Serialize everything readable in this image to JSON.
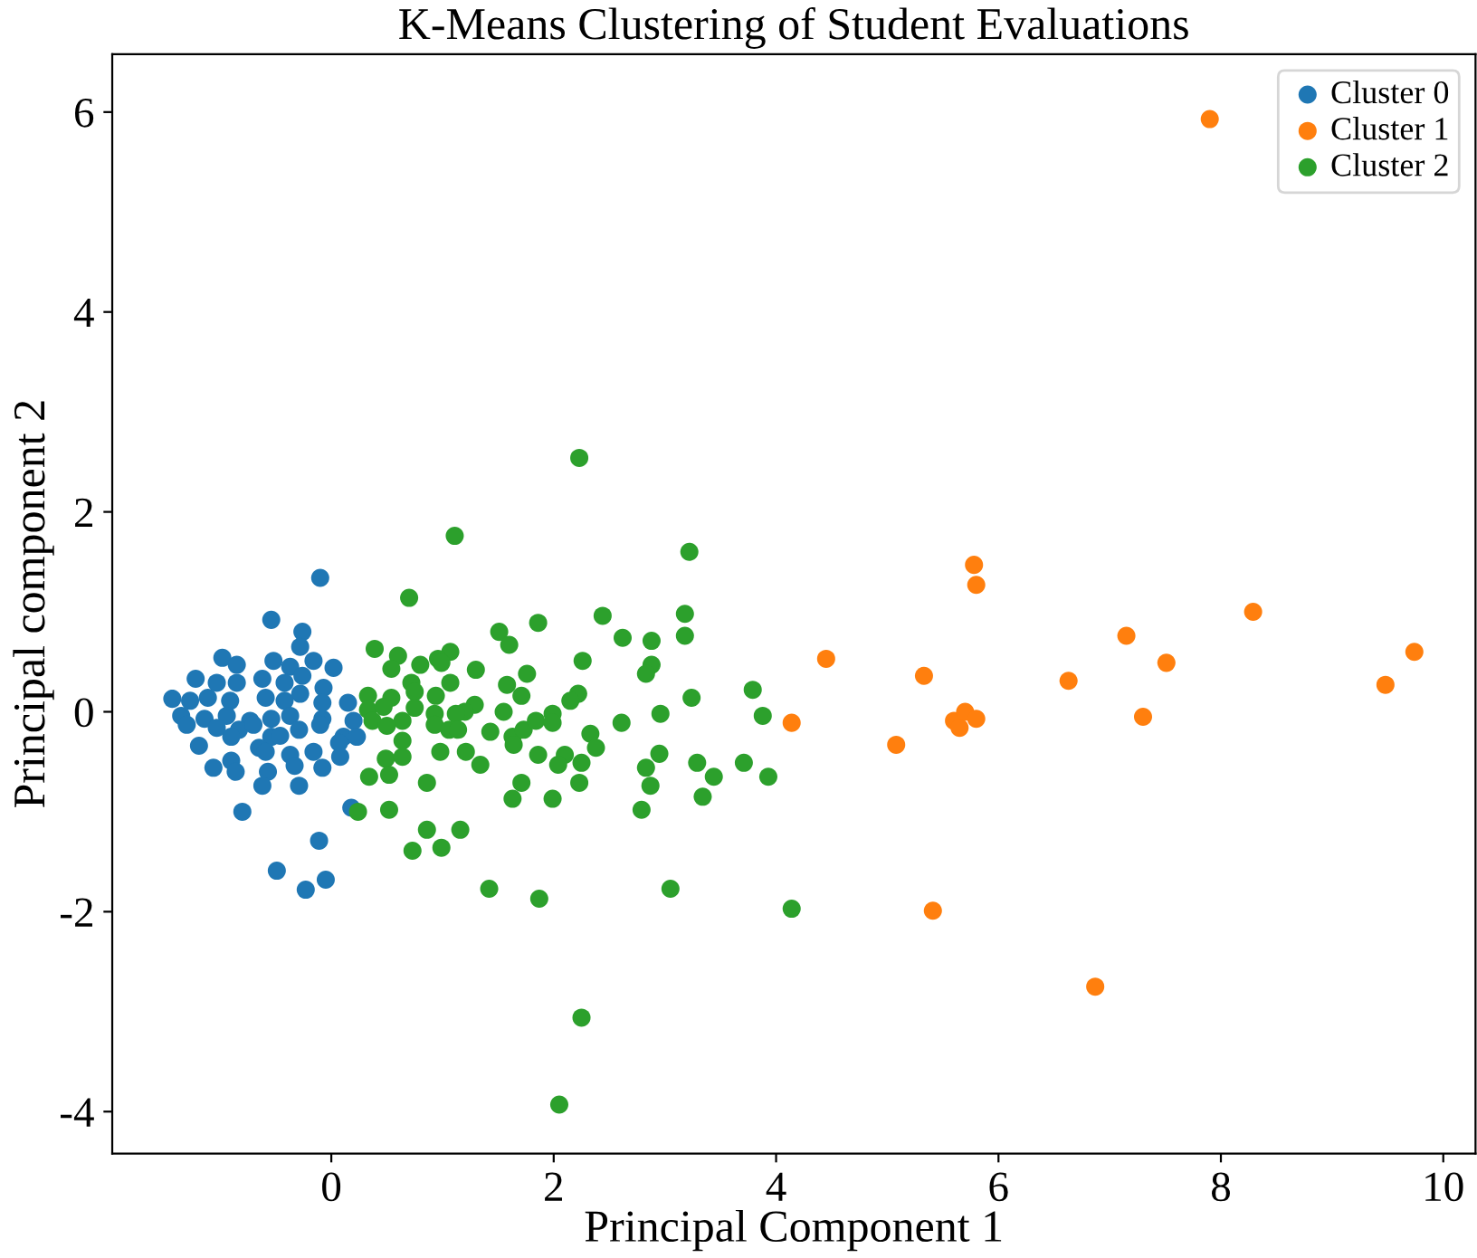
{
  "chart_data": {
    "type": "scatter",
    "title": "K-Means Clustering of Student Evaluations",
    "xlabel": "Principal Component 1",
    "ylabel": "Principal component 2",
    "xlim": [
      -1.97,
      10.29
    ],
    "ylim": [
      -4.42,
      6.58
    ],
    "xticks": [
      0,
      2,
      4,
      6,
      8,
      10
    ],
    "yticks": [
      {
        "value": -4,
        "label": "-4"
      },
      {
        "value": -2,
        "label": "-2"
      },
      0,
      2,
      4,
      6
    ],
    "grid": false,
    "legend": "top right",
    "marker": "circle",
    "series": [
      {
        "name": "Cluster 0",
        "color": "#1f77b4",
        "x": [
          -0.1,
          -0.54,
          -0.26,
          -0.28,
          -0.98,
          -0.85,
          -0.52,
          -0.37,
          -0.16,
          0.02,
          -1.22,
          -1.03,
          -0.85,
          -0.62,
          -0.42,
          -0.26,
          -0.07,
          -0.28,
          -1.43,
          -1.27,
          -1.11,
          -0.91,
          -0.59,
          -0.42,
          -0.08,
          0.15,
          -1.35,
          -1.14,
          -0.94,
          -0.73,
          -0.54,
          -0.37,
          -0.08,
          0.2,
          -1.3,
          -1.03,
          -0.83,
          -0.7,
          -0.29,
          -0.1,
          0.11,
          0.23,
          -1.19,
          -0.9,
          -0.54,
          -0.46,
          -0.65,
          -0.37,
          -0.16,
          0.07,
          -0.59,
          -1.06,
          -0.9,
          -0.86,
          -0.57,
          -0.33,
          -0.08,
          0.08,
          -0.62,
          -0.29,
          -0.8,
          0.18,
          -0.11,
          -0.49,
          -0.23,
          -0.05
        ],
        "values": [
          1.34,
          0.92,
          0.8,
          0.65,
          0.54,
          0.47,
          0.51,
          0.45,
          0.51,
          0.44,
          0.33,
          0.29,
          0.29,
          0.33,
          0.29,
          0.36,
          0.24,
          0.18,
          0.13,
          0.11,
          0.14,
          0.11,
          0.14,
          0.11,
          0.09,
          0.09,
          -0.04,
          -0.07,
          -0.04,
          -0.09,
          -0.07,
          -0.04,
          -0.07,
          -0.09,
          -0.13,
          -0.16,
          -0.18,
          -0.13,
          -0.18,
          -0.13,
          -0.25,
          -0.25,
          -0.34,
          -0.25,
          -0.25,
          -0.24,
          -0.36,
          -0.43,
          -0.4,
          -0.31,
          -0.4,
          -0.56,
          -0.49,
          -0.6,
          -0.6,
          -0.54,
          -0.56,
          -0.45,
          -0.74,
          -0.74,
          -1.0,
          -0.96,
          -1.29,
          -1.59,
          -1.78,
          -1.68
        ]
      },
      {
        "name": "Cluster 1",
        "color": "#ff7f0e",
        "x": [
          7.9,
          5.78,
          5.8,
          8.29,
          7.15,
          9.74,
          7.51,
          4.45,
          5.33,
          6.63,
          9.48,
          4.14,
          5.08,
          5.6,
          5.7,
          5.65,
          5.8,
          7.3,
          5.41,
          6.87
        ],
        "values": [
          5.93,
          1.47,
          1.27,
          1.0,
          0.76,
          0.6,
          0.49,
          0.53,
          0.36,
          0.31,
          0.27,
          -0.11,
          -0.33,
          -0.09,
          0.0,
          -0.16,
          -0.07,
          -0.05,
          -1.99,
          -2.75
        ]
      },
      {
        "name": "Cluster 2",
        "color": "#2ca02c",
        "x": [
          2.23,
          1.11,
          3.22,
          0.7,
          2.44,
          3.18,
          1.86,
          3.18,
          1.51,
          2.62,
          2.88,
          1.6,
          0.39,
          0.6,
          1.07,
          2.26,
          0.96,
          0.99,
          0.8,
          0.54,
          1.3,
          2.88,
          2.83,
          1.76,
          0.72,
          1.07,
          1.58,
          0.75,
          0.94,
          1.71,
          2.22,
          2.15,
          3.24,
          3.79,
          3.88,
          0.33,
          0.54,
          0.33,
          0.47,
          0.75,
          1.29,
          1.2,
          1.12,
          1.55,
          0.93,
          0.64,
          0.37,
          0.5,
          0.93,
          1.06,
          1.14,
          1.43,
          1.63,
          1.73,
          1.84,
          1.99,
          1.99,
          2.61,
          2.96,
          2.33,
          2.38,
          1.64,
          0.64,
          0.98,
          1.21,
          0.49,
          0.64,
          1.86,
          2.1,
          2.04,
          2.25,
          1.34,
          2.95,
          2.83,
          3.29,
          3.71,
          3.44,
          3.93,
          0.34,
          0.52,
          0.86,
          1.71,
          2.23,
          2.87,
          3.34,
          1.63,
          1.99,
          2.79,
          0.52,
          0.24,
          0.86,
          1.16,
          0.73,
          0.99,
          1.42,
          1.87,
          3.05,
          4.14,
          2.25,
          2.05
        ],
        "values": [
          2.54,
          1.76,
          1.6,
          1.14,
          0.96,
          0.98,
          0.89,
          0.76,
          0.8,
          0.74,
          0.71,
          0.67,
          0.63,
          0.56,
          0.6,
          0.51,
          0.53,
          0.49,
          0.47,
          0.43,
          0.42,
          0.47,
          0.38,
          0.38,
          0.29,
          0.29,
          0.27,
          0.2,
          0.16,
          0.16,
          0.18,
          0.11,
          0.14,
          0.22,
          -0.04,
          0.16,
          0.14,
          0.02,
          0.05,
          0.04,
          0.07,
          0.0,
          -0.02,
          0.0,
          -0.02,
          -0.09,
          -0.09,
          -0.14,
          -0.13,
          -0.18,
          -0.18,
          -0.2,
          -0.25,
          -0.18,
          -0.09,
          -0.02,
          -0.11,
          -0.11,
          -0.02,
          -0.22,
          -0.36,
          -0.33,
          -0.29,
          -0.4,
          -0.4,
          -0.47,
          -0.45,
          -0.43,
          -0.43,
          -0.53,
          -0.51,
          -0.53,
          -0.42,
          -0.56,
          -0.51,
          -0.51,
          -0.65,
          -0.65,
          -0.65,
          -0.63,
          -0.71,
          -0.71,
          -0.71,
          -0.74,
          -0.85,
          -0.87,
          -0.87,
          -0.98,
          -0.98,
          -1.0,
          -1.18,
          -1.18,
          -1.39,
          -1.36,
          -1.77,
          -1.87,
          -1.77,
          -1.97,
          -3.06,
          -3.93
        ]
      }
    ]
  }
}
